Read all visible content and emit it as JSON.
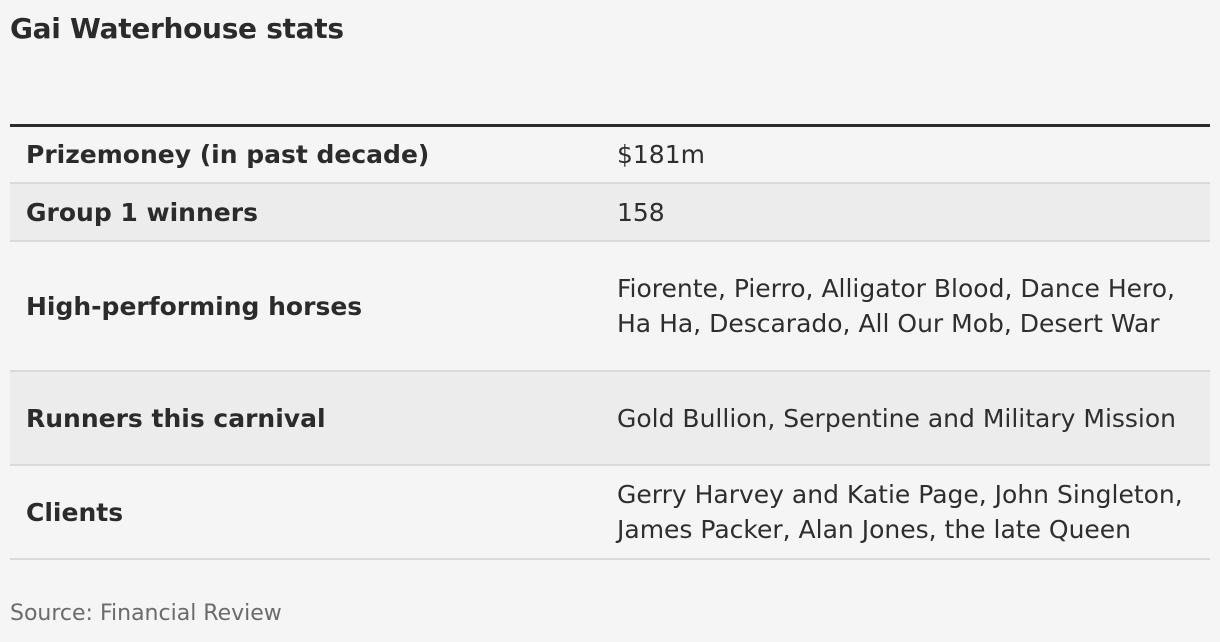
{
  "title": "Gai Waterhouse stats",
  "rows": [
    {
      "label": "Prizemoney (in past decade)",
      "value": "$181m"
    },
    {
      "label": "Group 1 winners",
      "value": "158"
    },
    {
      "label": "High-performing horses",
      "value": "Fiorente, Pierro, Alligator Blood, Dance Hero, Ha Ha, Descarado, All Our Mob, Desert War"
    },
    {
      "label": "Runners this carnival",
      "value": "Gold Bullion, Serpentine and Military Mission"
    },
    {
      "label": "Clients",
      "value": "Gerry Harvey and Katie Page, John Singleton, James Packer, Alan Jones, the late Queen"
    }
  ],
  "source": "Source: Financial Review"
}
